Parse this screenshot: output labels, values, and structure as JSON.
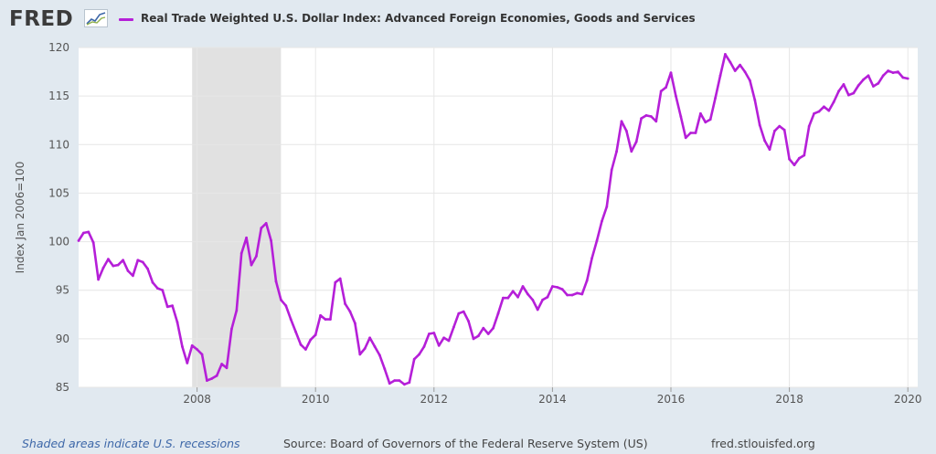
{
  "header": {
    "logo_text": "FRED",
    "logo_icon": "fred-trend-icon"
  },
  "footer": {
    "recession_note": "Shaded areas indicate U.S. recessions",
    "source": "Source: Board of Governors of the Federal Reserve System (US)",
    "site": "fred.stlouisfed.org"
  },
  "colors": {
    "series": "#b51fd8",
    "recession": "#e1e1e1",
    "grid": "#e6e6e6",
    "axis_text": "#555555",
    "background": "#e1e9f0",
    "plot_background": "#ffffff"
  },
  "chart_data": {
    "type": "line",
    "title": "",
    "xlabel": "",
    "ylabel": "Index Jan 2006=100",
    "ylim": [
      85,
      120
    ],
    "xlim": [
      "2006-01",
      "2020-03"
    ],
    "y_ticks": [
      85,
      90,
      95,
      100,
      105,
      110,
      115,
      120
    ],
    "x_ticks": [
      "2008",
      "2010",
      "2012",
      "2014",
      "2016",
      "2018",
      "2020"
    ],
    "grid": true,
    "legend": "top-left",
    "recessions": [
      {
        "start": "2007-12",
        "end": "2009-06"
      }
    ],
    "series": [
      {
        "name": "Real Trade Weighted U.S. Dollar Index: Advanced Foreign Economies, Goods and Services",
        "start": "2006-01",
        "frequency": "monthly",
        "values": [
          100.1,
          100.9,
          101.0,
          99.9,
          96.1,
          97.3,
          98.2,
          97.5,
          97.6,
          98.1,
          97.0,
          96.5,
          98.1,
          97.9,
          97.2,
          95.8,
          95.2,
          95.0,
          93.3,
          93.4,
          91.7,
          89.2,
          87.5,
          89.3,
          88.9,
          88.4,
          85.7,
          85.9,
          86.2,
          87.4,
          87.0,
          91.0,
          92.9,
          98.8,
          100.4,
          97.6,
          98.5,
          101.4,
          101.9,
          100.1,
          95.9,
          94.0,
          93.4,
          92.0,
          90.7,
          89.4,
          88.9,
          89.9,
          90.4,
          92.4,
          92.0,
          92.0,
          95.8,
          96.2,
          93.6,
          92.8,
          91.6,
          88.4,
          89.0,
          90.1,
          89.2,
          88.3,
          86.9,
          85.4,
          85.7,
          85.7,
          85.3,
          85.5,
          87.9,
          88.4,
          89.2,
          90.5,
          90.6,
          89.3,
          90.1,
          89.8,
          91.2,
          92.6,
          92.8,
          91.8,
          90.0,
          90.3,
          91.1,
          90.5,
          91.1,
          92.6,
          94.2,
          94.2,
          94.9,
          94.3,
          95.4,
          94.6,
          94.0,
          93.0,
          94.0,
          94.3,
          95.4,
          95.3,
          95.1,
          94.5,
          94.5,
          94.7,
          94.6,
          96.0,
          98.3,
          100.1,
          102.1,
          103.6,
          107.4,
          109.3,
          112.4,
          111.4,
          109.3,
          110.3,
          112.7,
          113.0,
          112.9,
          112.4,
          115.5,
          115.9,
          117.4,
          115.0,
          112.9,
          110.7,
          111.2,
          111.2,
          113.2,
          112.3,
          112.6,
          114.8,
          117.1,
          119.3,
          118.5,
          117.6,
          118.2,
          117.5,
          116.6,
          114.6,
          112.0,
          110.4,
          109.5,
          111.4,
          111.9,
          111.5,
          108.5,
          107.9,
          108.6,
          108.9,
          111.9,
          113.2,
          113.4,
          113.9,
          113.5,
          114.4,
          115.5,
          116.2,
          115.1,
          115.3,
          116.1,
          116.7,
          117.1,
          116.0,
          116.3,
          117.1,
          117.6,
          117.4,
          117.5,
          116.9,
          116.8
        ]
      }
    ]
  }
}
